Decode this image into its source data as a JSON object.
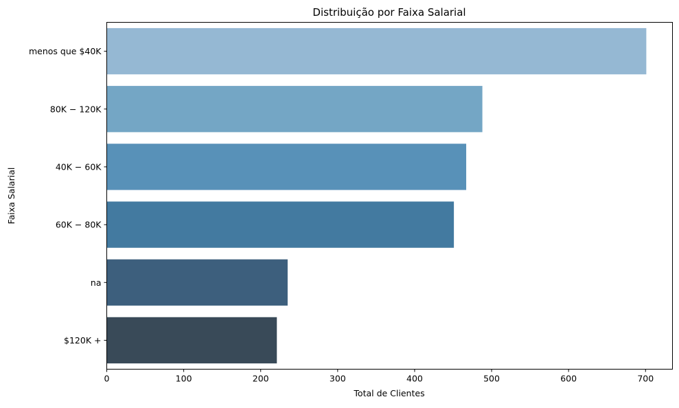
{
  "chart_data": {
    "type": "bar",
    "orientation": "horizontal",
    "title": "Distribuição por Faixa Salarial",
    "xlabel": "Total de Clientes",
    "ylabel": "Faixa Salarial",
    "categories": [
      "menos que $40K",
      "$80K - $120K",
      "$40K - $60K",
      "$60K - $80K",
      "na",
      "$120K +"
    ],
    "category_display": [
      "menos que $40K",
      "80K − 120K",
      "40K − 60K",
      "60K − 80K",
      "na",
      "$120K +"
    ],
    "values": [
      701,
      488,
      467,
      451,
      235,
      221
    ],
    "colors": [
      "#95b8d3",
      "#74a6c5",
      "#5891b8",
      "#437aa0",
      "#3d5f7d",
      "#394a58"
    ],
    "xlim": [
      0,
      735
    ],
    "xticks": [
      0,
      100,
      200,
      300,
      400,
      500,
      600,
      700
    ],
    "grid": false,
    "legend": "none"
  }
}
